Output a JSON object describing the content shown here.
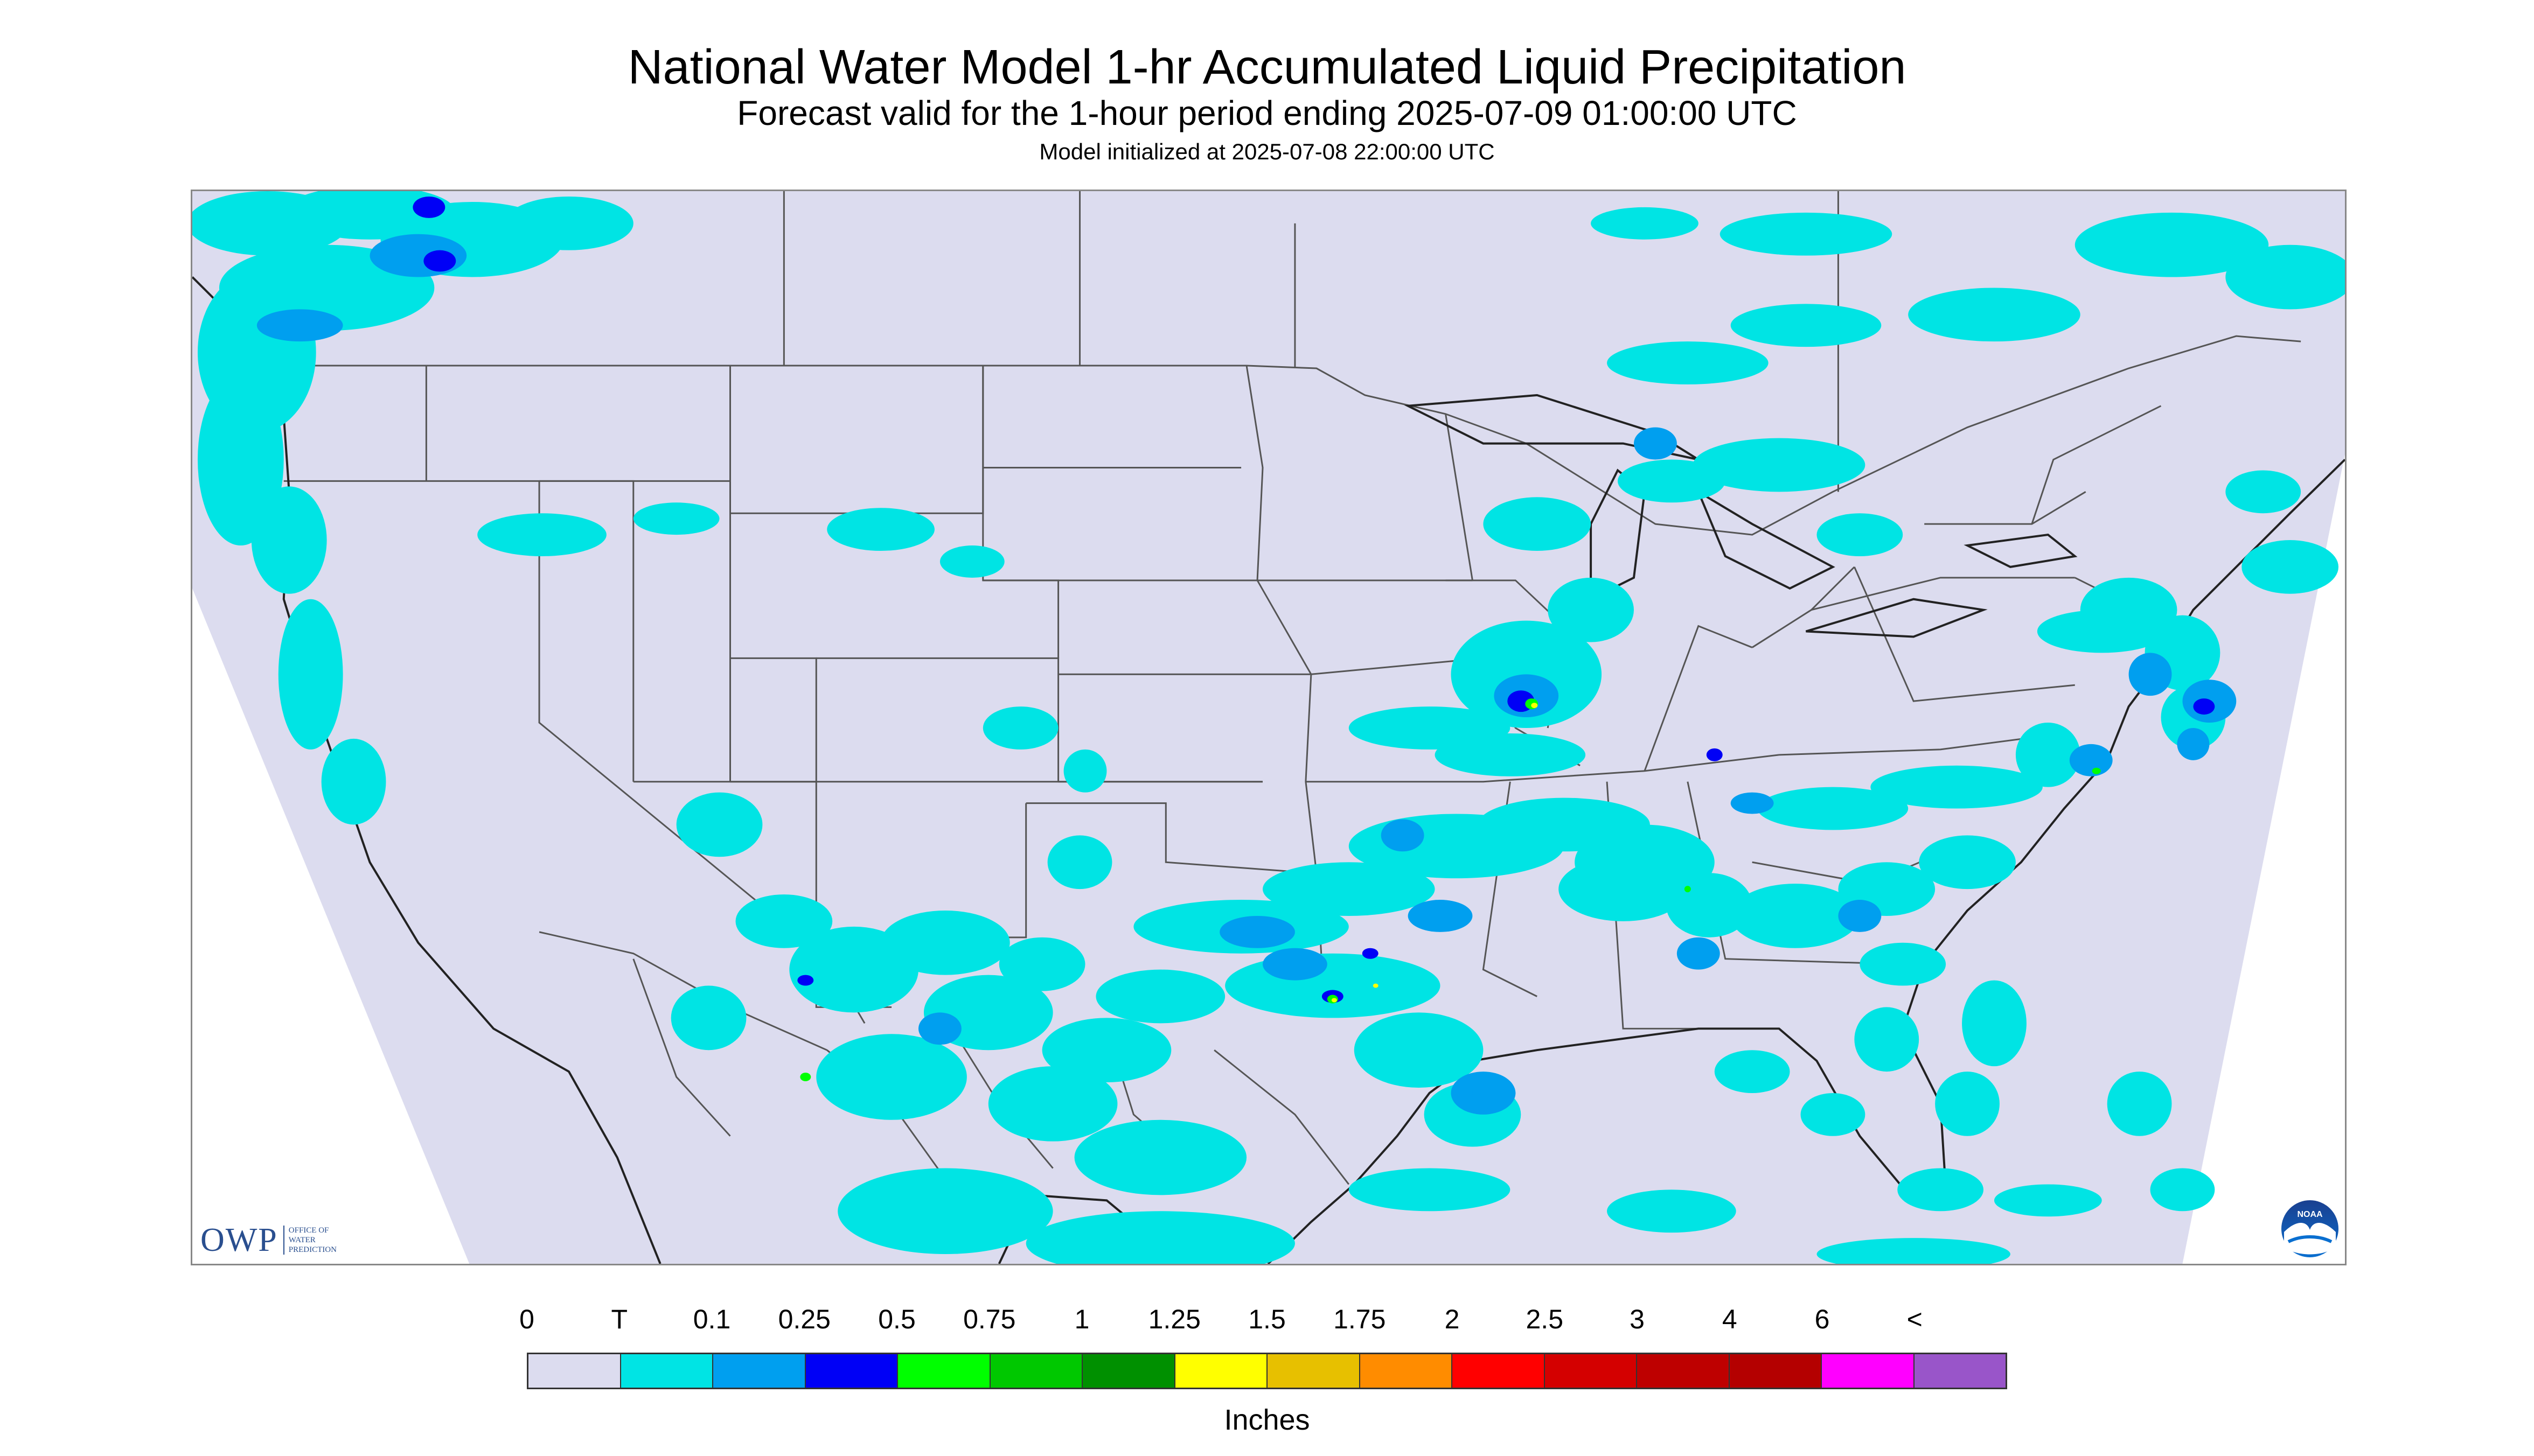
{
  "header": {
    "title": "National Water Model 1-hr Accumulated Liquid Precipitation",
    "subtitle": "Forecast valid for the 1-hour period ending 2025-07-09 01:00:00 UTC",
    "init_line": "Model initialized at 2025-07-08 22:00:00 UTC"
  },
  "map": {
    "background_color": "#dcdcef",
    "outside_color": "#ffffff",
    "boundary_color": "#555555",
    "coast_color": "#222222",
    "precip_colors": {
      "trace": "#00e4e4",
      "tenth": "#009fef",
      "quarter": "#0000f6",
      "half": "#00ff00",
      "three_quarter": "#00c800",
      "one": "#009000",
      "one_and_quarter": "#ffff00",
      "one_and_half": "#e7c000"
    }
  },
  "logos": {
    "owp_mark": "OWP",
    "owp_line1": "Office of",
    "owp_line2": "Water",
    "owp_line3": "Prediction",
    "noaa_mark": "NOAA",
    "noaa_icon": "noaa-seagull-icon"
  },
  "legend": {
    "unit_label": "Inches",
    "ticks": [
      "0",
      "T",
      "0.1",
      "0.25",
      "0.5",
      "0.75",
      "1",
      "1.25",
      "1.5",
      "1.75",
      "2",
      "2.5",
      "3",
      "4",
      "6",
      "<"
    ],
    "colors": [
      "#dcdcef",
      "#00e4e4",
      "#009fef",
      "#0000f6",
      "#00ff00",
      "#00c800",
      "#009000",
      "#ffff00",
      "#e7c000",
      "#ff8c00",
      "#ff0000",
      "#d40000",
      "#be0000",
      "#b40000",
      "#ff00ff",
      "#9955c9"
    ]
  }
}
